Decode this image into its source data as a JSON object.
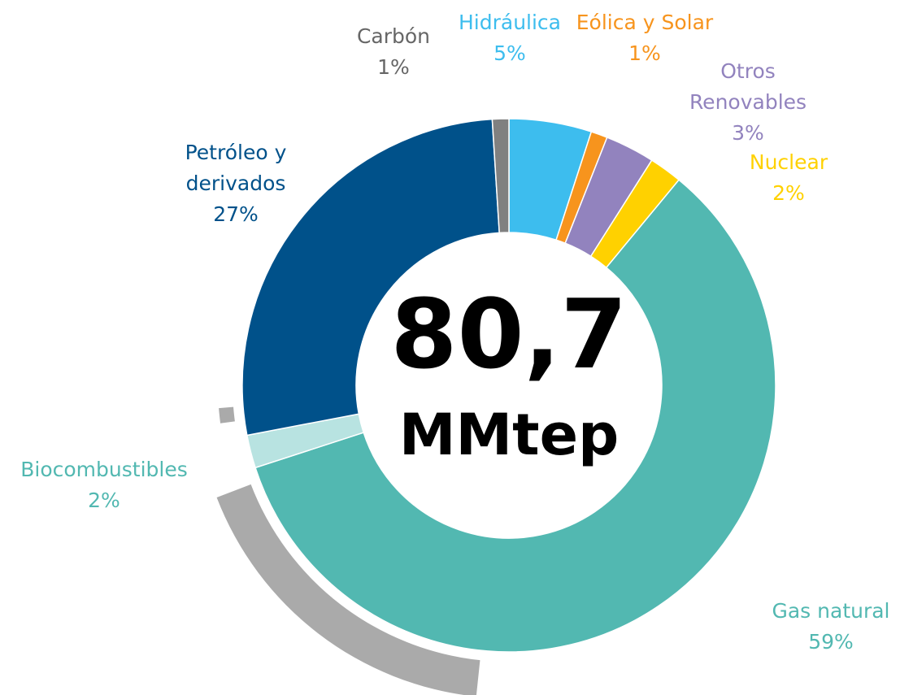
{
  "chart_data": {
    "type": "donut",
    "center_value": "80,7",
    "center_unit": "MMtep",
    "categories": [
      "Hidráulica",
      "Eólica y Solar",
      "Otros Renovables",
      "Nuclear",
      "Gas natural",
      "Biocombustibles",
      "Petróleo y derivados",
      "Carbón"
    ],
    "values": [
      5,
      1,
      3,
      2,
      59,
      2,
      27,
      1
    ],
    "value_labels": [
      "5%",
      "1%",
      "3%",
      "2%",
      "59%",
      "2%",
      "27%",
      "1%"
    ],
    "colors": [
      "#3dbdee",
      "#f7941d",
      "#9283be",
      "#ffd100",
      "#52b8b1",
      "#b8e3e1",
      "#00518a",
      "#808080"
    ],
    "label_colors": [
      "#3dbdee",
      "#f7941d",
      "#9283be",
      "#ffd100",
      "#52b8b1",
      "#52b8b1",
      "#00518a",
      "#666666"
    ]
  }
}
